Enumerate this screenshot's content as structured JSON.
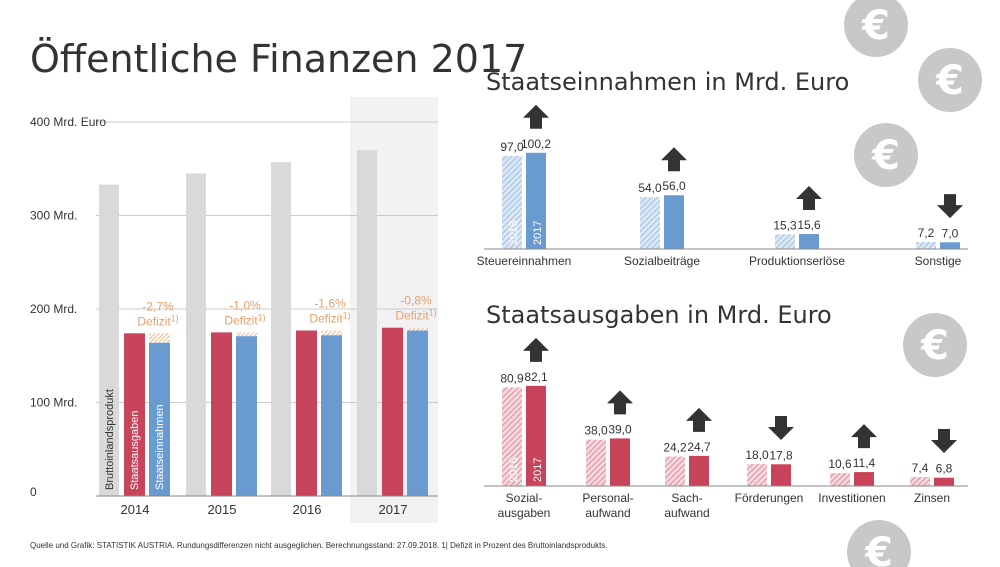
{
  "page": {
    "title": "Öffentliche Finanzen 2017",
    "footnote": "Quelle und Grafik: STATISTIK AUSTRIA. Rundungsdifferenzen nicht ausgeglichen. Berechnungsstand: 27.09.2018. 1| Defizit in Prozent des Bruttoinlandsprodukts."
  },
  "colors": {
    "gdp": "#d9d9d9",
    "expenditure": "#c8445a",
    "revenue": "#6a9bd0",
    "deficit": "#e8a06a",
    "arrow": "#333333",
    "coin": "#c8c8c8",
    "highlight": "#f2f2f2"
  },
  "icons": [
    "euro-coin-icon",
    "arrow-up-icon",
    "arrow-down-icon"
  ],
  "chart_data": [
    {
      "type": "bar",
      "title": "",
      "categories": [
        "2014",
        "2015",
        "2016",
        "2017"
      ],
      "ylim": [
        0,
        400
      ],
      "yticks": [
        {
          "value": 0,
          "label": "0"
        },
        {
          "value": 100,
          "label": "100 Mrd."
        },
        {
          "value": 200,
          "label": "200 Mrd."
        },
        {
          "value": 300,
          "label": "300 Mrd."
        },
        {
          "value": 400,
          "label": "400 Mrd. Euro"
        }
      ],
      "series": [
        {
          "name": "Bruttoinlandsprodukt",
          "values": [
            333,
            345,
            357,
            370
          ]
        },
        {
          "name": "Staatsausgaben",
          "values": [
            174,
            175,
            177,
            180
          ]
        },
        {
          "name": "Staatseinnahmen",
          "values": [
            164,
            171,
            172,
            177
          ]
        }
      ],
      "deficit_labels": [
        "-2,7%",
        "-1,0%",
        "-1,6%",
        "-0,8%"
      ],
      "deficit_word": "Defizit",
      "deficit_mark": "1)",
      "highlight_category": "2017"
    },
    {
      "type": "bar",
      "title": "Staatseinnahmen in Mrd. Euro",
      "categories": [
        "Steuereinnahmen",
        "Sozialbeiträge",
        "Produktionserlöse",
        "Sonstige"
      ],
      "series": [
        {
          "name": "2016",
          "values": [
            97.0,
            54.0,
            15.3,
            7.2
          ],
          "labels": [
            "97,0",
            "54,0",
            "15,3",
            "7,2"
          ]
        },
        {
          "name": "2017",
          "values": [
            100.2,
            56.0,
            15.6,
            7.0
          ],
          "labels": [
            "100,2",
            "56,0",
            "15,6",
            "7,0"
          ]
        }
      ],
      "trend": [
        "up",
        "up",
        "up",
        "down"
      ]
    },
    {
      "type": "bar",
      "title": "Staatsausgaben in Mrd. Euro",
      "categories": [
        [
          "Sozial-",
          "ausgaben"
        ],
        [
          "Personal-",
          "aufwand"
        ],
        [
          "Sach-",
          "aufwand"
        ],
        [
          "Förderungen"
        ],
        [
          "Investitionen"
        ],
        [
          "Zinsen"
        ]
      ],
      "series": [
        {
          "name": "2016",
          "values": [
            80.9,
            38.0,
            24.2,
            18.0,
            10.6,
            7.4
          ],
          "labels": [
            "80,9",
            "38,0",
            "24,2",
            "18,0",
            "10,6",
            "7,4"
          ]
        },
        {
          "name": "2017",
          "values": [
            82.1,
            39.0,
            24.7,
            17.8,
            11.4,
            6.8
          ],
          "labels": [
            "82,1",
            "39,0",
            "24,7",
            "17,8",
            "11,4",
            "6,8"
          ]
        }
      ],
      "trend": [
        "up",
        "up",
        "up",
        "down",
        "up",
        "down"
      ]
    }
  ]
}
